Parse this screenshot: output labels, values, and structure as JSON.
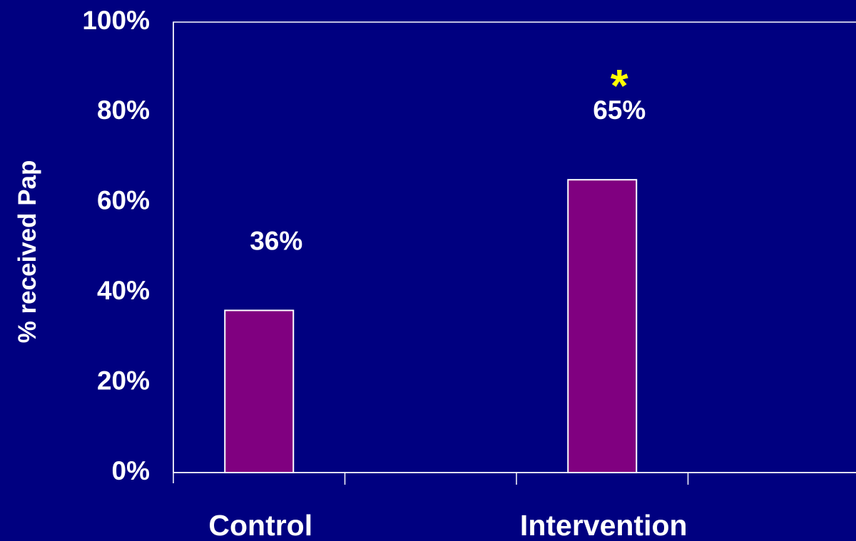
{
  "colors": {
    "background": "#000080",
    "bar_fill": "#800080",
    "bar_stroke": "#ffffff",
    "axis": "#ffffff",
    "text": "#ffffff",
    "significance": "#ffff00"
  },
  "chart_data": {
    "type": "bar",
    "categories": [
      "Control",
      "Intervention"
    ],
    "values": [
      36,
      65
    ],
    "value_labels": [
      "36%",
      "65%"
    ],
    "ylabel": "% received Pap",
    "xlabel": "",
    "ylim": [
      0,
      100
    ],
    "y_ticks": [
      0,
      20,
      40,
      60,
      80,
      100
    ],
    "y_tick_labels": [
      "0%",
      "20%",
      "40%",
      "60%",
      "80%",
      "100%"
    ],
    "x_major_ticks": 4,
    "grid": false,
    "legend": "none",
    "annotations": [
      {
        "category": "Intervention",
        "text": "*",
        "meaning": "significance marker"
      }
    ]
  }
}
